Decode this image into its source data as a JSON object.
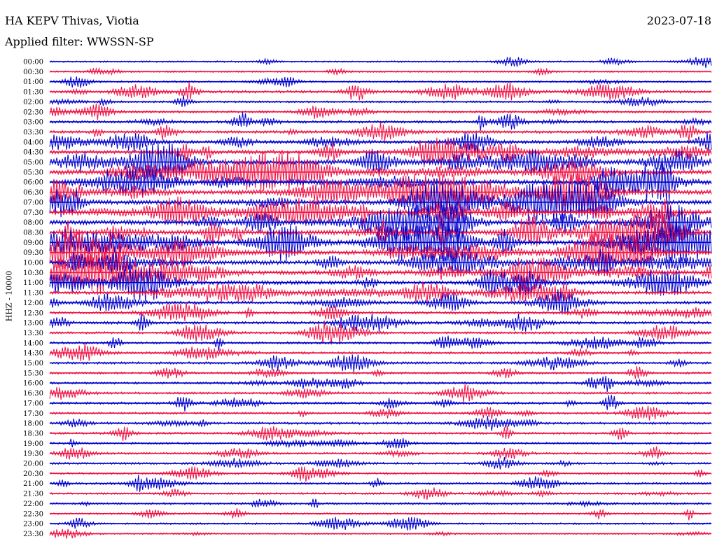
{
  "header": {
    "station": "HA KEPV Thivas, Viotia",
    "date": "2023-07-18",
    "filter": "Applied filter: WWSSN-SP"
  },
  "chart_data": {
    "type": "line",
    "title": "HA KEPV Thivas, Viotia",
    "ylabel": "HHZ - 10000",
    "date": "2023-07-18",
    "filter": "WWSSN-SP",
    "row_labels": [
      "00:00",
      "00:30",
      "01:00",
      "01:30",
      "02:00",
      "02:30",
      "03:00",
      "03:30",
      "04:00",
      "04:30",
      "05:00",
      "05:30",
      "06:00",
      "06:30",
      "07:00",
      "07:30",
      "08:00",
      "08:30",
      "09:00",
      "09:30",
      "10:00",
      "10:30",
      "11:00",
      "11:30",
      "12:00",
      "12:30",
      "13:00",
      "13:30",
      "14:00",
      "14:30",
      "15:00",
      "15:30",
      "16:00",
      "16:30",
      "17:00",
      "17:30",
      "18:00",
      "18:30",
      "19:00",
      "19:30",
      "20:00",
      "20:30",
      "21:00",
      "21:30",
      "22:00",
      "22:30",
      "23:00",
      "23:30"
    ],
    "row_colors": [
      "#0000cc",
      "#ee1144"
    ],
    "row_minutes": 30,
    "activity_levels": [
      0.15,
      0.15,
      0.2,
      0.45,
      0.25,
      0.35,
      0.45,
      0.5,
      0.6,
      0.75,
      1.0,
      1.0,
      1.0,
      1.0,
      1.0,
      1.0,
      1.0,
      1.0,
      1.0,
      1.0,
      0.9,
      0.9,
      0.75,
      0.7,
      0.55,
      0.45,
      0.5,
      0.35,
      0.35,
      0.35,
      0.35,
      0.3,
      0.35,
      0.3,
      0.35,
      0.3,
      0.35,
      0.3,
      0.25,
      0.25,
      0.3,
      0.25,
      0.3,
      0.25,
      0.3,
      0.2,
      0.2,
      0.15
    ]
  }
}
